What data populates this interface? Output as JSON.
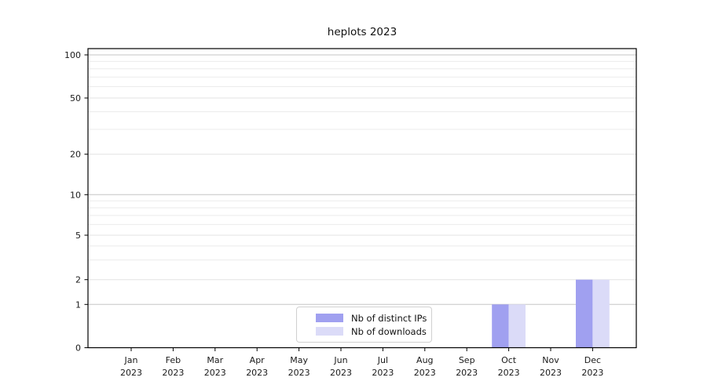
{
  "title": "heplots 2023",
  "chart_data": {
    "type": "bar",
    "title": "heplots 2023",
    "categories": [
      "Jan",
      "Feb",
      "Mar",
      "Apr",
      "May",
      "Jun",
      "Jul",
      "Aug",
      "Sep",
      "Oct",
      "Nov",
      "Dec"
    ],
    "year_label": "2023",
    "series": [
      {
        "name": "Nb of distinct IPs",
        "color": "#a0a0f0",
        "values": [
          0,
          0,
          0,
          0,
          0,
          0,
          0,
          0,
          0,
          1,
          0,
          2
        ]
      },
      {
        "name": "Nb of downloads",
        "color": "#dbdbf8",
        "values": [
          0,
          0,
          0,
          0,
          0,
          0,
          0,
          0,
          0,
          1,
          0,
          2
        ]
      }
    ],
    "y_axis": {
      "ticks": [
        0,
        1,
        2,
        5,
        10,
        20,
        50,
        100
      ],
      "scale": "log-like with linear 0-1 segment",
      "minor_gridlines": [
        3,
        4,
        6,
        7,
        8,
        9,
        30,
        40,
        60,
        70,
        80,
        90
      ],
      "major_gridlines": [
        1,
        10,
        100
      ],
      "mid_gridlines": [
        2,
        5,
        20,
        50
      ]
    },
    "xlabel": "",
    "ylabel": "",
    "grid": "horizontal",
    "legend_position": "lower center-left inside plot",
    "colors": {
      "frame": "#000000",
      "tick_text": "#1a1a1a",
      "minor_grid": "#ebebeb",
      "mid_grid": "#e3e3e3",
      "major_grid": "#c6c6c6"
    }
  }
}
